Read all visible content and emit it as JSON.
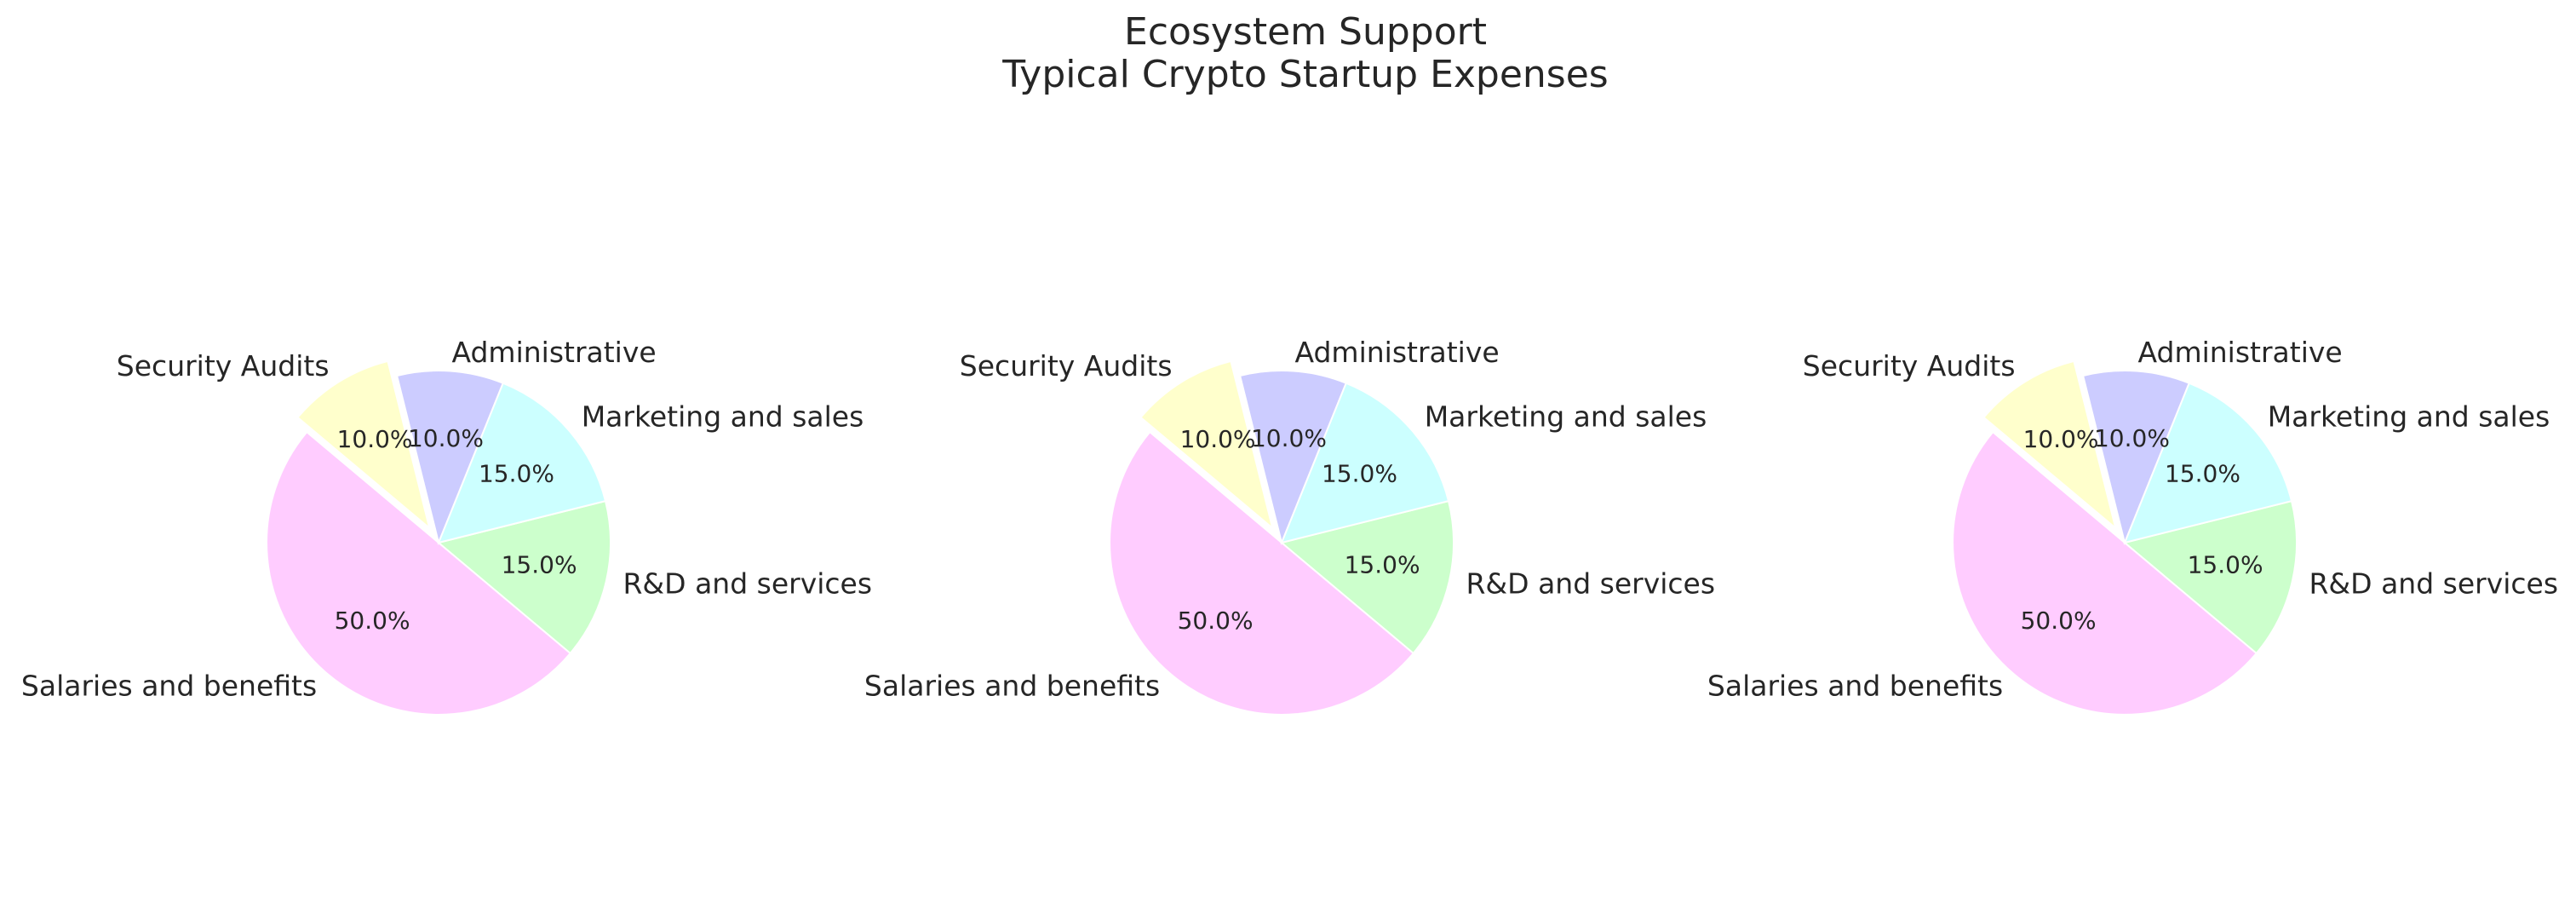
{
  "figure": {
    "title_line1": "Ecosystem Support",
    "title_line2": "Typical Crypto Startup Expenses"
  },
  "chart_data": [
    {
      "type": "pie",
      "title": "",
      "start_angle_deg": 140,
      "direction": "counterclockwise",
      "slices": [
        {
          "label": "Salaries and benefits",
          "value": 50.0,
          "pct_label": "50.0%",
          "color": "#ffccff",
          "explode": 0
        },
        {
          "label": "R&D and services",
          "value": 15.0,
          "pct_label": "15.0%",
          "color": "#ccffcc",
          "explode": 0
        },
        {
          "label": "Marketing and sales",
          "value": 15.0,
          "pct_label": "15.0%",
          "color": "#ccffff",
          "explode": 0
        },
        {
          "label": "Administrative",
          "value": 10.0,
          "pct_label": "10.0%",
          "color": "#ccccff",
          "explode": 0
        },
        {
          "label": "Security Audits",
          "value": 10.0,
          "pct_label": "10.0%",
          "color": "#ffffcc",
          "explode": 0.1
        }
      ]
    },
    {
      "type": "pie",
      "title": "",
      "start_angle_deg": 140,
      "direction": "counterclockwise",
      "slices": [
        {
          "label": "Salaries and benefits",
          "value": 50.0,
          "pct_label": "50.0%",
          "color": "#ffccff",
          "explode": 0
        },
        {
          "label": "R&D and services",
          "value": 15.0,
          "pct_label": "15.0%",
          "color": "#ccffcc",
          "explode": 0
        },
        {
          "label": "Marketing and sales",
          "value": 15.0,
          "pct_label": "15.0%",
          "color": "#ccffff",
          "explode": 0
        },
        {
          "label": "Administrative",
          "value": 10.0,
          "pct_label": "10.0%",
          "color": "#ccccff",
          "explode": 0
        },
        {
          "label": "Security Audits",
          "value": 10.0,
          "pct_label": "10.0%",
          "color": "#ffffcc",
          "explode": 0.1
        }
      ]
    },
    {
      "type": "pie",
      "title": "",
      "start_angle_deg": 140,
      "direction": "counterclockwise",
      "slices": [
        {
          "label": "Salaries and benefits",
          "value": 50.0,
          "pct_label": "50.0%",
          "color": "#ffccff",
          "explode": 0
        },
        {
          "label": "R&D and services",
          "value": 15.0,
          "pct_label": "15.0%",
          "color": "#ccffcc",
          "explode": 0
        },
        {
          "label": "Marketing and sales",
          "value": 15.0,
          "pct_label": "15.0%",
          "color": "#ccffff",
          "explode": 0
        },
        {
          "label": "Administrative",
          "value": 10.0,
          "pct_label": "10.0%",
          "color": "#ccccff",
          "explode": 0
        },
        {
          "label": "Security Audits",
          "value": 10.0,
          "pct_label": "10.0%",
          "color": "#ffffcc",
          "explode": 0.1
        }
      ]
    }
  ]
}
